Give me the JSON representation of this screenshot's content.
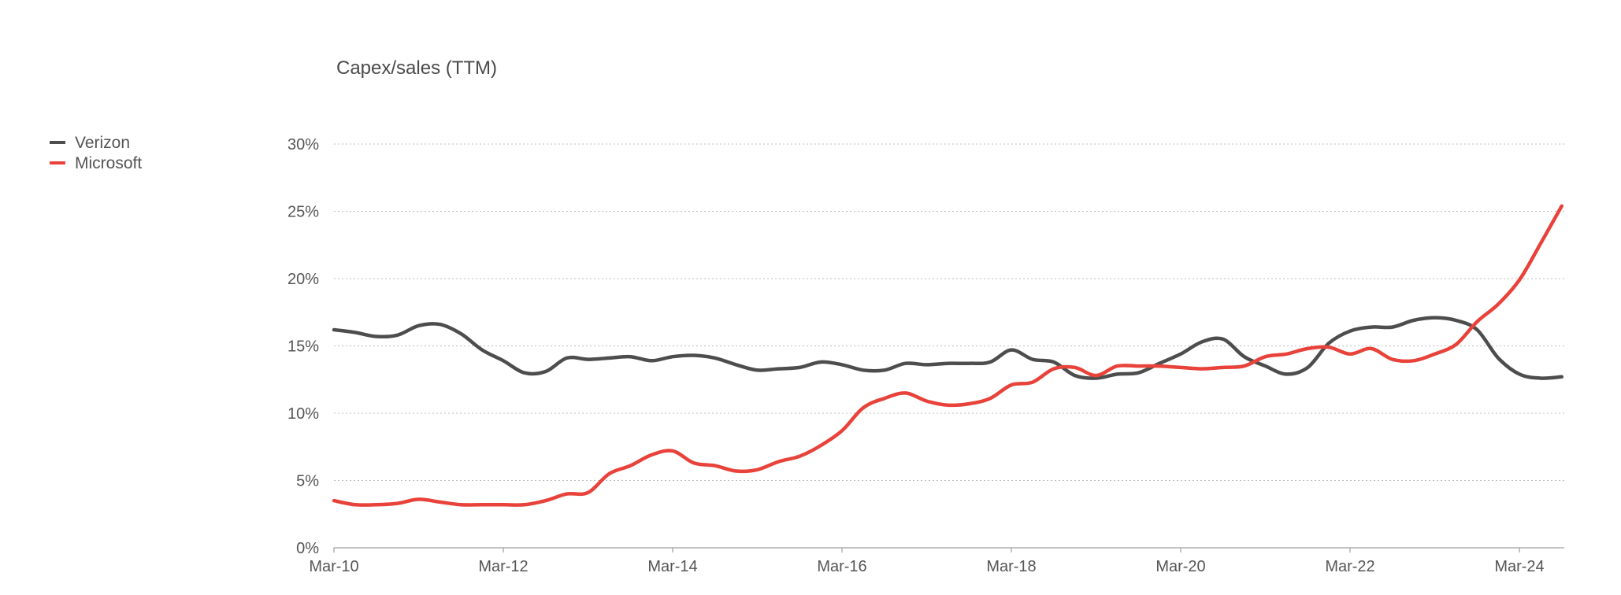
{
  "chart_data": {
    "type": "line",
    "title": "Capex/sales (TTM)",
    "xlabel": "",
    "ylabel": "",
    "y_ticks": [
      "0%",
      "5%",
      "10%",
      "15%",
      "20%",
      "25%",
      "30%"
    ],
    "y_tick_values": [
      0,
      5,
      10,
      15,
      20,
      25,
      30
    ],
    "ylim": [
      0,
      30
    ],
    "x_ticks": [
      "Mar-10",
      "Mar-12",
      "Mar-14",
      "Mar-16",
      "Mar-18",
      "Mar-20",
      "Mar-22",
      "Mar-24"
    ],
    "x_start": "Mar-10",
    "x_end": "Sep-24",
    "grid": "horizontal dotted",
    "legend": "top-left",
    "series": [
      {
        "name": "Verizon",
        "color": "#4d4d4d",
        "values": [
          16.2,
          16.0,
          15.7,
          15.8,
          16.5,
          16.6,
          15.9,
          14.7,
          13.9,
          13.0,
          13.1,
          14.1,
          14.0,
          14.1,
          14.2,
          13.9,
          14.2,
          14.3,
          14.1,
          13.6,
          13.2,
          13.3,
          13.4,
          13.8,
          13.6,
          13.2,
          13.2,
          13.7,
          13.6,
          13.7,
          13.7,
          13.8,
          14.7,
          14.0,
          13.8,
          12.8,
          12.6,
          12.9,
          13.0,
          13.7,
          14.4,
          15.3,
          15.5,
          14.2,
          13.5,
          12.9,
          13.4,
          15.2,
          16.1,
          16.4,
          16.4,
          16.9,
          17.1,
          16.9,
          16.2,
          14.1,
          12.9,
          12.6,
          12.7
        ]
      },
      {
        "name": "Microsoft",
        "color": "#e8423a",
        "values": [
          3.5,
          3.2,
          3.2,
          3.3,
          3.6,
          3.4,
          3.2,
          3.2,
          3.2,
          3.2,
          3.5,
          4.0,
          4.1,
          5.5,
          6.1,
          6.9,
          7.2,
          6.3,
          6.1,
          5.7,
          5.8,
          6.4,
          6.8,
          7.6,
          8.7,
          10.4,
          11.1,
          11.5,
          10.9,
          10.6,
          10.7,
          11.1,
          12.1,
          12.3,
          13.3,
          13.4,
          12.8,
          13.5,
          13.5,
          13.5,
          13.4,
          13.3,
          13.4,
          13.5,
          14.2,
          14.4,
          14.8,
          14.9,
          14.4,
          14.8,
          14.0,
          13.9,
          14.4,
          15.1,
          16.8,
          18.1,
          19.9,
          22.6,
          25.4
        ]
      }
    ]
  }
}
